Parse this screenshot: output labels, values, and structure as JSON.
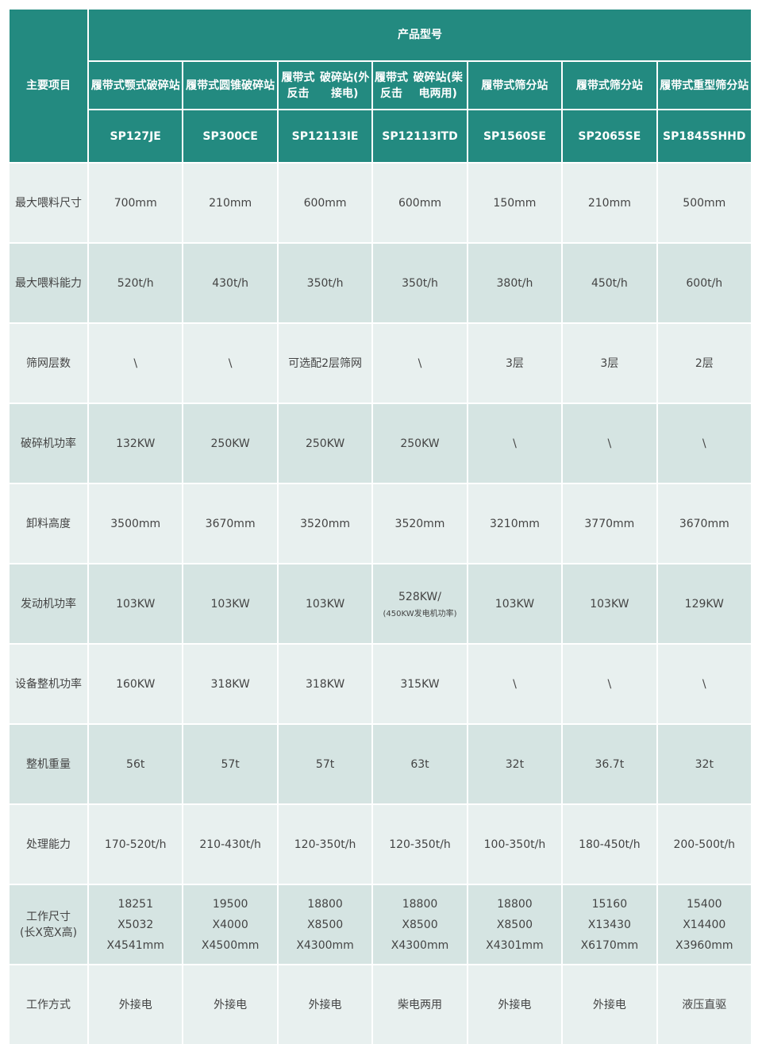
{
  "header": {
    "main_item": "主要项目",
    "product_model": "产品型号",
    "types": [
      [
        "履带式颚式",
        "破碎站"
      ],
      [
        "履带式圆锥",
        "破碎站"
      ],
      [
        "履带式反击",
        "破碎站(外接电)"
      ],
      [
        "履带式反击",
        "破碎站(柴电两用)"
      ],
      [
        "履带式",
        "筛分站"
      ],
      [
        "履带式",
        "筛分站"
      ],
      [
        "履带式重型",
        "筛分站"
      ]
    ],
    "models": [
      "SP127JE",
      "SP300CE",
      "SP12113IE",
      "SP12113ITD",
      "SP1560SE",
      "SP2065SE",
      "SP1845SHHD"
    ]
  },
  "rows": [
    {
      "label": [
        "最大喂料尺寸"
      ],
      "values": [
        [
          "700mm"
        ],
        [
          "210mm"
        ],
        [
          "600mm"
        ],
        [
          "600mm"
        ],
        [
          "150mm"
        ],
        [
          "210mm"
        ],
        [
          "500mm"
        ]
      ]
    },
    {
      "label": [
        "最大喂料能力"
      ],
      "values": [
        [
          "520t/h"
        ],
        [
          "430t/h"
        ],
        [
          "350t/h"
        ],
        [
          "350t/h"
        ],
        [
          "380t/h"
        ],
        [
          "450t/h"
        ],
        [
          "600t/h"
        ]
      ]
    },
    {
      "label": [
        "筛网层数"
      ],
      "values": [
        [
          "\\"
        ],
        [
          "\\"
        ],
        [
          "可选配2层筛网"
        ],
        [
          "\\"
        ],
        [
          "3层"
        ],
        [
          "3层"
        ],
        [
          "2层"
        ]
      ]
    },
    {
      "label": [
        "破碎机功率"
      ],
      "values": [
        [
          "132KW"
        ],
        [
          "250KW"
        ],
        [
          "250KW"
        ],
        [
          "250KW"
        ],
        [
          "\\"
        ],
        [
          "\\"
        ],
        [
          "\\"
        ]
      ]
    },
    {
      "label": [
        "卸料高度"
      ],
      "values": [
        [
          "3500mm"
        ],
        [
          "3670mm"
        ],
        [
          "3520mm"
        ],
        [
          "3520mm"
        ],
        [
          "3210mm"
        ],
        [
          "3770mm"
        ],
        [
          "3670mm"
        ]
      ]
    },
    {
      "label": [
        "发动机功率"
      ],
      "values": [
        [
          "103KW"
        ],
        [
          "103KW"
        ],
        [
          "103KW"
        ],
        [
          "528KW/",
          "(450KW发电机功率)"
        ],
        [
          "103KW"
        ],
        [
          "103KW"
        ],
        [
          "129KW"
        ]
      ]
    },
    {
      "label": [
        "设备整机功率"
      ],
      "values": [
        [
          "160KW"
        ],
        [
          "318KW"
        ],
        [
          "318KW"
        ],
        [
          "315KW"
        ],
        [
          "\\"
        ],
        [
          "\\"
        ],
        [
          "\\"
        ]
      ]
    },
    {
      "label": [
        "整机重量"
      ],
      "values": [
        [
          "56t"
        ],
        [
          "57t"
        ],
        [
          "57t"
        ],
        [
          "63t"
        ],
        [
          "32t"
        ],
        [
          "36.7t"
        ],
        [
          "32t"
        ]
      ]
    },
    {
      "label": [
        "处理能力"
      ],
      "values": [
        [
          "170-520t/h"
        ],
        [
          "210-430t/h"
        ],
        [
          "120-350t/h"
        ],
        [
          "120-350t/h"
        ],
        [
          "100-350t/h"
        ],
        [
          "180-450t/h"
        ],
        [
          "200-500t/h"
        ]
      ]
    },
    {
      "label": [
        "工作尺寸",
        "(长X宽X高)"
      ],
      "values": [
        [
          "18251",
          "X5032",
          "X4541mm"
        ],
        [
          "19500",
          "X4000",
          "X4500mm"
        ],
        [
          "18800",
          "X8500",
          "X4300mm"
        ],
        [
          "18800",
          "X8500",
          "X4300mm"
        ],
        [
          "18800",
          "X8500",
          "X4301mm"
        ],
        [
          "15160",
          "X13430",
          "X6170mm"
        ],
        [
          "15400",
          "X14400",
          "X3960mm"
        ]
      ]
    },
    {
      "label": [
        "工作方式"
      ],
      "values": [
        [
          "外接电"
        ],
        [
          "外接电"
        ],
        [
          "外接电"
        ],
        [
          "柴电两用"
        ],
        [
          "外接电"
        ],
        [
          "外接电"
        ],
        [
          "液压直驱"
        ]
      ]
    }
  ],
  "colors": {
    "header": "#238a80",
    "row_light": "#e8f0ef",
    "row_dark": "#d5e4e2"
  }
}
